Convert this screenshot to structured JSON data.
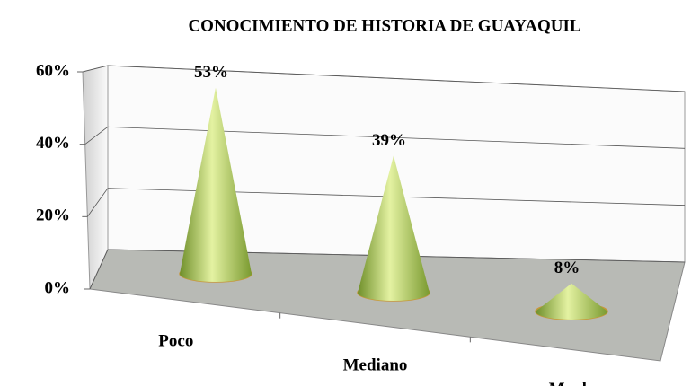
{
  "chart_data": {
    "type": "cone3d",
    "title": "CONOCIMIENTO  DE HISTORIA  DE GUAYAQUIL",
    "categories": [
      "Poco",
      "Mediano",
      "Mucho"
    ],
    "values": [
      53,
      39,
      8
    ],
    "value_labels": [
      "53%",
      "39%",
      "8%"
    ],
    "color": "#9bbb59",
    "ylim": [
      0,
      60
    ],
    "yticks": [
      {
        "value": 0,
        "label": "0%"
      },
      {
        "value": 20,
        "label": "20%"
      },
      {
        "value": 40,
        "label": "40%"
      },
      {
        "value": 60,
        "label": "60%"
      }
    ],
    "grid": true
  }
}
